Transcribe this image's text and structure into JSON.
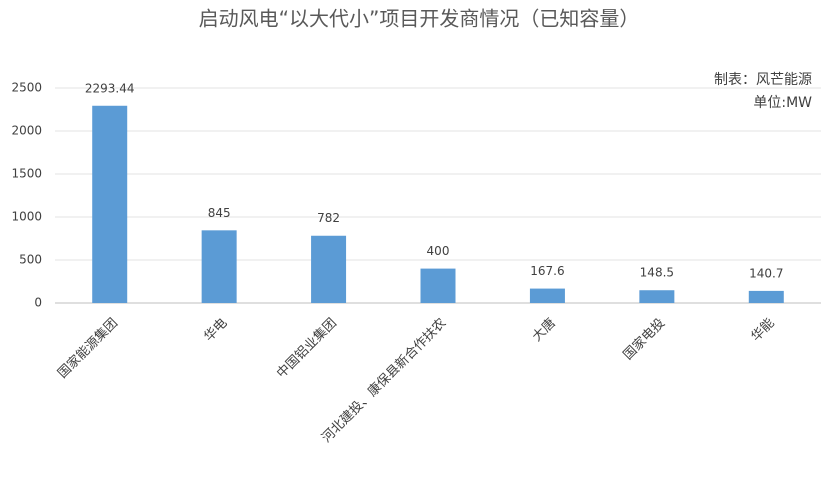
{
  "chart_data": {
    "type": "bar",
    "title": "启动风电“以大代小”项目开发商情况（已知容量）",
    "annotations": [
      "制表：风芒能源",
      "单位:MW"
    ],
    "categories": [
      "国家能源集团",
      "华电",
      "中国铝业集团",
      "河北建投、康保县新合作扶农",
      "大唐",
      "国家电投",
      "华能"
    ],
    "values": [
      2293.44,
      845,
      782,
      400,
      167.6,
      148.5,
      140.7
    ],
    "color": "#5b9bd5",
    "ylim": [
      0,
      2500
    ],
    "yticks": [
      0,
      500,
      1000,
      1500,
      2000,
      2500
    ],
    "grid": true
  }
}
